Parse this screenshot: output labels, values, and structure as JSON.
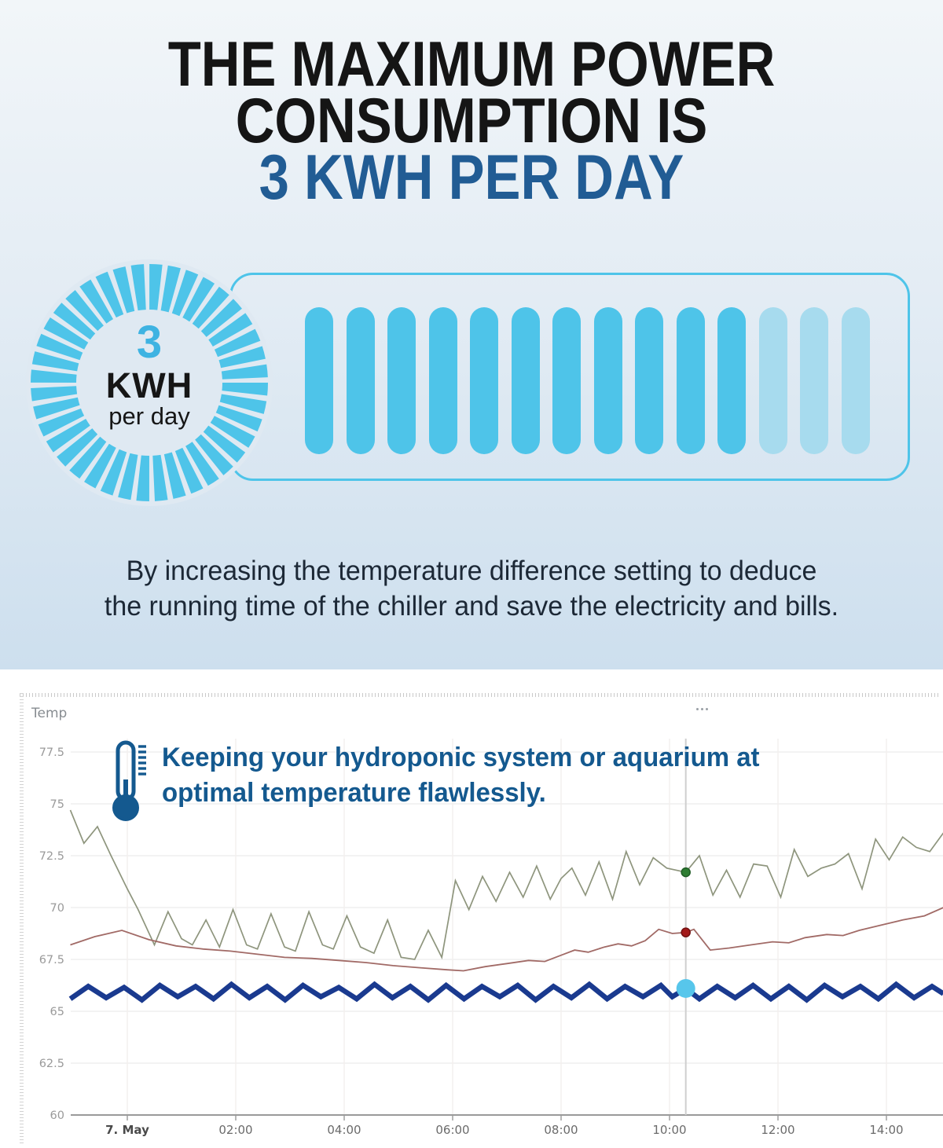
{
  "hero": {
    "title": {
      "line1": "THE MAXIMUM POWER",
      "line2": "CONSUMPTION IS",
      "line3": "3 KWH PER DAY",
      "accent_color": "#215c94"
    },
    "badge": {
      "value": "3",
      "unit": "KWH",
      "per": "per day",
      "ring_color": "#4ec4e9"
    },
    "battery": {
      "total_bars": 14,
      "filled_bars": 11,
      "fill_color": "#4ec4e9",
      "light_color": "#a7dbee",
      "border_color": "#4ec4e9"
    },
    "description": {
      "line1": "By increasing the temperature difference setting to deduce",
      "line2": "the running time of the chiller and save the electricity and bills."
    }
  },
  "chart": {
    "panel_label": "Temp",
    "annotation": {
      "line1": "Keeping your hydroponic system or aquarium at",
      "line2": "optimal temperature flawlessly.",
      "color": "#14598f"
    }
  },
  "chart_data": {
    "type": "line",
    "title": "Temp",
    "grid": true,
    "legend": "none",
    "y_axis": {
      "label": "Temp",
      "range": [
        60,
        77.5
      ],
      "ticks": [
        77.5,
        75,
        72.5,
        70,
        67.5,
        65,
        62.5,
        60
      ]
    },
    "x_axis": {
      "unit": "hours from 7 May 00:00",
      "ticks": [
        {
          "label": "7. May",
          "hour": 0,
          "bold": true
        },
        {
          "label": "02:00",
          "hour": 2
        },
        {
          "label": "04:00",
          "hour": 4
        },
        {
          "label": "06:00",
          "hour": 6
        },
        {
          "label": "08:00",
          "hour": 8
        },
        {
          "label": "10:00",
          "hour": 10
        },
        {
          "label": "12:00",
          "hour": 12
        },
        {
          "label": "14:00",
          "hour": 14
        }
      ]
    },
    "cursor": {
      "hour": 10.3,
      "color": "#cfcfcf",
      "points": [
        {
          "series": "upper-line",
          "value": 71.7,
          "dot_color": "#2e7d32",
          "dot_stroke": "#1f5c24",
          "dot_radius": 5.5
        },
        {
          "series": "middle-line",
          "value": 68.8,
          "dot_color": "#a31a1a",
          "dot_stroke": "#731010",
          "dot_radius": 5.5
        },
        {
          "series": "water-temp-line",
          "value": 66.1,
          "dot_color": "#57c6eb",
          "dot_stroke": "none",
          "dot_radius": 12
        }
      ]
    },
    "series": [
      {
        "name": "upper-line",
        "color": "#8e957d",
        "width": 1.7,
        "points": [
          [
            -1.05,
            74.7
          ],
          [
            -0.8,
            73.1
          ],
          [
            -0.55,
            73.9
          ],
          [
            -0.3,
            72.5
          ],
          [
            0,
            70.9
          ],
          [
            0.2,
            69.9
          ],
          [
            0.5,
            68.2
          ],
          [
            0.75,
            69.8
          ],
          [
            1.0,
            68.5
          ],
          [
            1.2,
            68.2
          ],
          [
            1.45,
            69.4
          ],
          [
            1.7,
            68.1
          ],
          [
            1.95,
            69.9
          ],
          [
            2.2,
            68.2
          ],
          [
            2.4,
            68.0
          ],
          [
            2.65,
            69.7
          ],
          [
            2.9,
            68.1
          ],
          [
            3.1,
            67.9
          ],
          [
            3.35,
            69.8
          ],
          [
            3.6,
            68.2
          ],
          [
            3.8,
            68.0
          ],
          [
            4.05,
            69.6
          ],
          [
            4.3,
            68.1
          ],
          [
            4.55,
            67.8
          ],
          [
            4.8,
            69.4
          ],
          [
            5.05,
            67.6
          ],
          [
            5.3,
            67.5
          ],
          [
            5.55,
            68.9
          ],
          [
            5.8,
            67.6
          ],
          [
            6.05,
            71.3
          ],
          [
            6.3,
            69.9
          ],
          [
            6.55,
            71.5
          ],
          [
            6.8,
            70.3
          ],
          [
            7.05,
            71.7
          ],
          [
            7.3,
            70.5
          ],
          [
            7.55,
            72.0
          ],
          [
            7.8,
            70.4
          ],
          [
            8.0,
            71.4
          ],
          [
            8.2,
            71.9
          ],
          [
            8.45,
            70.6
          ],
          [
            8.7,
            72.2
          ],
          [
            8.95,
            70.4
          ],
          [
            9.2,
            72.7
          ],
          [
            9.45,
            71.1
          ],
          [
            9.7,
            72.4
          ],
          [
            9.95,
            71.9
          ],
          [
            10.3,
            71.7
          ],
          [
            10.55,
            72.5
          ],
          [
            10.8,
            70.6
          ],
          [
            11.05,
            71.8
          ],
          [
            11.3,
            70.5
          ],
          [
            11.55,
            72.1
          ],
          [
            11.8,
            72.0
          ],
          [
            12.05,
            70.5
          ],
          [
            12.3,
            72.8
          ],
          [
            12.55,
            71.5
          ],
          [
            12.8,
            71.9
          ],
          [
            13.05,
            72.1
          ],
          [
            13.3,
            72.6
          ],
          [
            13.55,
            70.9
          ],
          [
            13.8,
            73.3
          ],
          [
            14.05,
            72.3
          ],
          [
            14.3,
            73.4
          ],
          [
            14.55,
            72.9
          ],
          [
            14.8,
            72.7
          ],
          [
            15.05,
            73.6
          ]
        ]
      },
      {
        "name": "middle-line",
        "color": "#a16a66",
        "width": 1.8,
        "points": [
          [
            -1.05,
            68.2
          ],
          [
            -0.6,
            68.6
          ],
          [
            -0.1,
            68.9
          ],
          [
            0.4,
            68.45
          ],
          [
            0.9,
            68.15
          ],
          [
            1.4,
            68.0
          ],
          [
            1.9,
            67.9
          ],
          [
            2.4,
            67.75
          ],
          [
            2.9,
            67.6
          ],
          [
            3.4,
            67.55
          ],
          [
            3.9,
            67.45
          ],
          [
            4.4,
            67.35
          ],
          [
            4.9,
            67.2
          ],
          [
            5.4,
            67.1
          ],
          [
            5.9,
            67.0
          ],
          [
            6.2,
            66.95
          ],
          [
            6.6,
            67.15
          ],
          [
            7.0,
            67.3
          ],
          [
            7.4,
            67.45
          ],
          [
            7.7,
            67.4
          ],
          [
            8.0,
            67.7
          ],
          [
            8.25,
            67.95
          ],
          [
            8.5,
            67.85
          ],
          [
            8.8,
            68.1
          ],
          [
            9.05,
            68.25
          ],
          [
            9.3,
            68.15
          ],
          [
            9.55,
            68.4
          ],
          [
            9.8,
            68.95
          ],
          [
            10.05,
            68.75
          ],
          [
            10.3,
            68.8
          ],
          [
            10.45,
            68.95
          ],
          [
            10.75,
            67.95
          ],
          [
            11.1,
            68.05
          ],
          [
            11.5,
            68.2
          ],
          [
            11.9,
            68.35
          ],
          [
            12.2,
            68.3
          ],
          [
            12.5,
            68.55
          ],
          [
            12.9,
            68.7
          ],
          [
            13.2,
            68.65
          ],
          [
            13.5,
            68.9
          ],
          [
            13.9,
            69.15
          ],
          [
            14.3,
            69.4
          ],
          [
            14.7,
            69.6
          ],
          [
            15.05,
            70.0
          ]
        ]
      },
      {
        "name": "water-temp-line",
        "color": "#1a3a8f",
        "width": 6.5,
        "points": [
          [
            -1.05,
            65.6
          ],
          [
            -0.72,
            66.2
          ],
          [
            -0.39,
            65.65
          ],
          [
            -0.06,
            66.15
          ],
          [
            0.27,
            65.55
          ],
          [
            0.6,
            66.25
          ],
          [
            0.93,
            65.7
          ],
          [
            1.26,
            66.2
          ],
          [
            1.59,
            65.6
          ],
          [
            1.92,
            66.3
          ],
          [
            2.25,
            65.65
          ],
          [
            2.58,
            66.2
          ],
          [
            2.91,
            65.55
          ],
          [
            3.24,
            66.25
          ],
          [
            3.57,
            65.7
          ],
          [
            3.9,
            66.15
          ],
          [
            4.23,
            65.6
          ],
          [
            4.56,
            66.3
          ],
          [
            4.89,
            65.65
          ],
          [
            5.22,
            66.2
          ],
          [
            5.55,
            65.55
          ],
          [
            5.88,
            66.25
          ],
          [
            6.21,
            65.6
          ],
          [
            6.54,
            66.2
          ],
          [
            6.87,
            65.7
          ],
          [
            7.2,
            66.25
          ],
          [
            7.53,
            65.55
          ],
          [
            7.86,
            66.2
          ],
          [
            8.19,
            65.65
          ],
          [
            8.52,
            66.3
          ],
          [
            8.85,
            65.6
          ],
          [
            9.18,
            66.2
          ],
          [
            9.51,
            65.7
          ],
          [
            9.84,
            66.25
          ],
          [
            10.05,
            65.7
          ],
          [
            10.3,
            66.1
          ],
          [
            10.55,
            65.6
          ],
          [
            10.88,
            66.2
          ],
          [
            11.21,
            65.65
          ],
          [
            11.54,
            66.25
          ],
          [
            11.87,
            65.6
          ],
          [
            12.2,
            66.2
          ],
          [
            12.53,
            65.55
          ],
          [
            12.86,
            66.25
          ],
          [
            13.19,
            65.7
          ],
          [
            13.52,
            66.2
          ],
          [
            13.85,
            65.6
          ],
          [
            14.18,
            66.3
          ],
          [
            14.51,
            65.65
          ],
          [
            14.84,
            66.2
          ],
          [
            15.05,
            65.85
          ]
        ]
      }
    ]
  }
}
